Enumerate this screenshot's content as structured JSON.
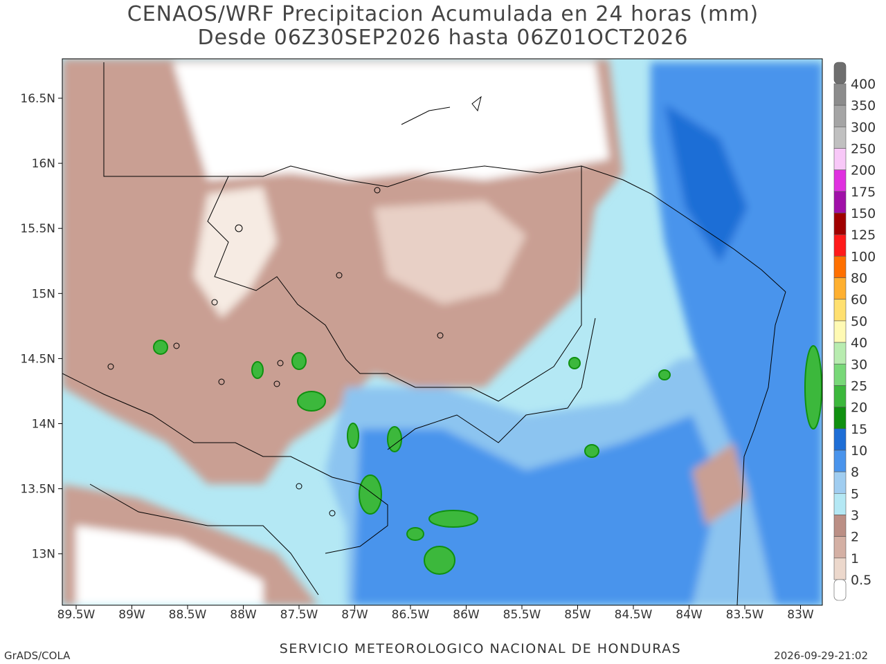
{
  "title": [
    "CENAOS/WRF Precipitacion Acumulada en 24 horas (mm)",
    "Desde 06Z30SEP2026 hasta 06Z01OCT2026"
  ],
  "lat_labels": [
    "16.5N",
    "16N",
    "15.5N",
    "15N",
    "14.5N",
    "14N",
    "13.5N",
    "13N"
  ],
  "lon_labels": [
    "89.5W",
    "89W",
    "88.5W",
    "88W",
    "87.5W",
    "87W",
    "86.5W",
    "86W",
    "85.5W",
    "85W",
    "84.5W",
    "84W",
    "83.5W",
    "83W"
  ],
  "colorbar": {
    "labels": [
      400,
      350,
      300,
      250,
      200,
      175,
      150,
      125,
      100,
      80,
      60,
      50,
      40,
      30,
      25,
      20,
      15,
      10,
      8,
      5,
      3,
      2,
      1,
      0.5
    ],
    "colors": [
      "#6e6e6e",
      "#8c8c8c",
      "#a5a5a5",
      "#c0c0c0",
      "#f8c8f8",
      "#e030e0",
      "#a010a8",
      "#a00000",
      "#ff1a1a",
      "#ff7000",
      "#ffb030",
      "#ffe070",
      "#fffab4",
      "#b8ecb0",
      "#78d878",
      "#3cb83c",
      "#109010",
      "#1e6ed6",
      "#4a94ec",
      "#a0cdf0",
      "#b4e8f4",
      "#bb8f85",
      "#d4b0a4",
      "#ecd8cc",
      "#ffffff"
    ]
  },
  "footer": {
    "left": "GrADS/COLA",
    "center": "SERVICIO METEOROLOGICO NACIONAL DE HONDURAS",
    "right": "2026-09-29-21:02"
  }
}
